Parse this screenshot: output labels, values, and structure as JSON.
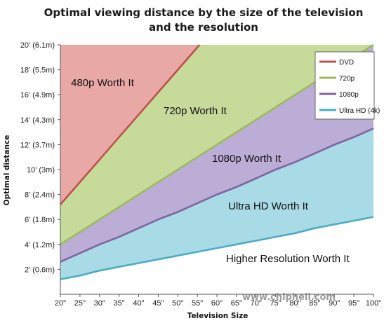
{
  "title_line1": "Optimal viewing distance by the size of the television",
  "title_line2": "and the resolution",
  "watermark": "www.chiphell.com",
  "chart_data": {
    "type": "area",
    "xlabel": "Television Size",
    "ylabel": "Optimal distance",
    "x": [
      20,
      25,
      30,
      35,
      40,
      45,
      50,
      55,
      60,
      65,
      70,
      75,
      80,
      85,
      90,
      95,
      100
    ],
    "x_tick_labels": [
      "20\"",
      "25\"",
      "30\"",
      "35\"",
      "40\"",
      "45\"",
      "50\"",
      "55\"",
      "60\"",
      "65\"",
      "70\"",
      "75\"",
      "80\"",
      "85\"",
      "90\"",
      "95\"",
      "100\""
    ],
    "xlim": [
      20,
      100
    ],
    "ylim": [
      0,
      20
    ],
    "y_ticks": [
      2,
      4,
      6,
      8,
      10,
      12,
      14,
      16,
      18,
      20
    ],
    "y_tick_labels": [
      "2' (0.6m)",
      "4' (1.2m)",
      "6' (1.8m)",
      "8' (2.4m)",
      "10' (3m)",
      "12' (3.7m)",
      "14' (4.3m)",
      "16' (4.9m)",
      "18' (5.5m)",
      "20' (6.1m)"
    ],
    "grid": false,
    "legend_position": "top-right",
    "series": [
      {
        "name": "DVD",
        "color": "#c0504d",
        "values": [
          7.2,
          9.0,
          10.8,
          12.6,
          14.4,
          16.2,
          18.0,
          19.8,
          null,
          null,
          null,
          null,
          null,
          null,
          null,
          null,
          null
        ]
      },
      {
        "name": "720p",
        "color": "#9bbb59",
        "values": [
          4.0,
          5.0,
          6.0,
          7.0,
          8.0,
          9.0,
          10.0,
          11.0,
          12.0,
          13.0,
          14.0,
          15.0,
          16.0,
          17.0,
          18.0,
          19.0,
          20.0
        ]
      },
      {
        "name": "1080p",
        "color": "#8064a2",
        "values": [
          2.6,
          3.3,
          4.0,
          4.6,
          5.3,
          6.0,
          6.6,
          7.3,
          8.0,
          8.6,
          9.3,
          10.0,
          10.6,
          11.3,
          12.0,
          12.6,
          13.3
        ]
      },
      {
        "name": "Ultra HD (4k)",
        "color": "#4bacc6",
        "values": [
          1.2,
          1.5,
          1.9,
          2.2,
          2.5,
          2.8,
          3.1,
          3.4,
          3.7,
          4.0,
          4.3,
          4.6,
          4.9,
          5.3,
          5.6,
          5.9,
          6.2
        ]
      }
    ],
    "fills": {
      "dvd": "#e8a8a6",
      "p720": "#c6da9a",
      "p1080": "#bcadd6",
      "uhd": "#a8dbe6"
    },
    "region_labels": [
      "480p Worth It",
      "720p Worth It",
      "1080p Worth It",
      "Ultra HD Worth It",
      "Higher Resolution Worth It"
    ]
  }
}
